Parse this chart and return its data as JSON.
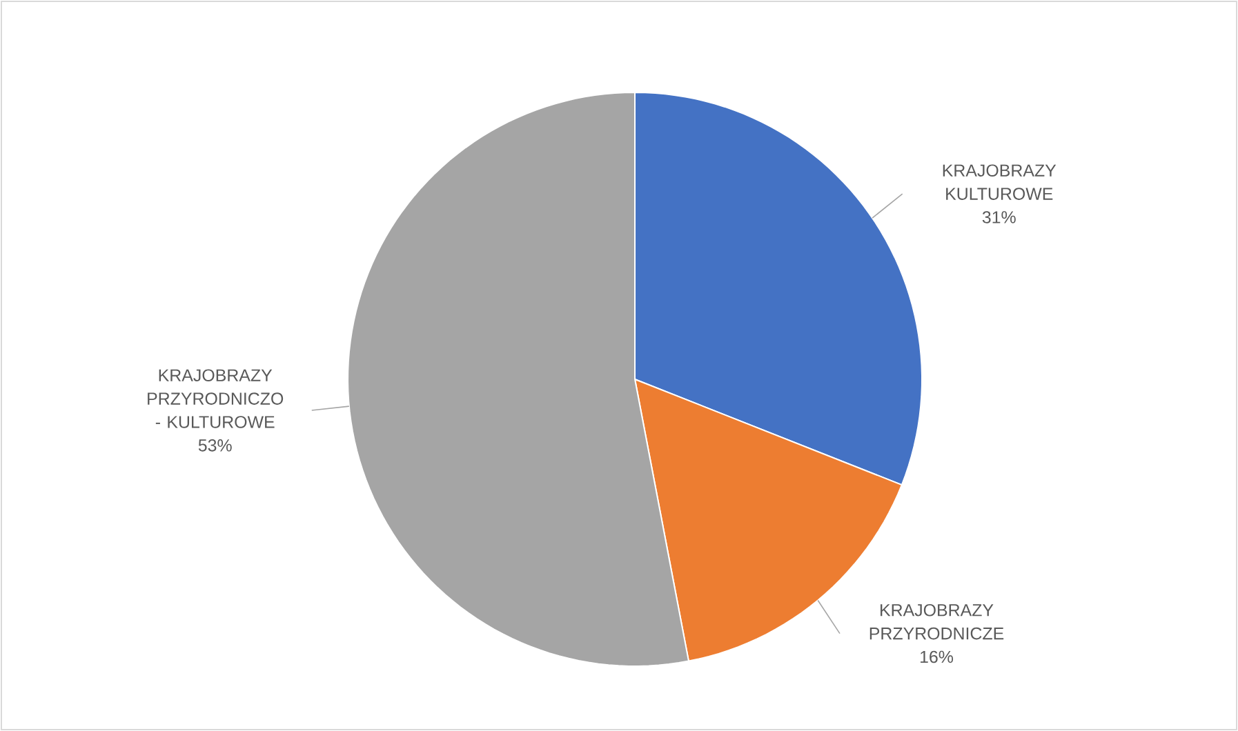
{
  "chart_data": {
    "type": "pie",
    "categories": [
      "KRAJOBRAZY KULTUROWE",
      "KRAJOBRAZY PRZYRODNICZE",
      "KRAJOBRAZY PRZYRODNICZO - KULTUROWE"
    ],
    "values": [
      31,
      16,
      53
    ],
    "colors": [
      "#4472c4",
      "#ed7d31",
      "#a5a5a5"
    ],
    "value_labels": [
      "31%",
      "16%",
      "53%"
    ]
  }
}
